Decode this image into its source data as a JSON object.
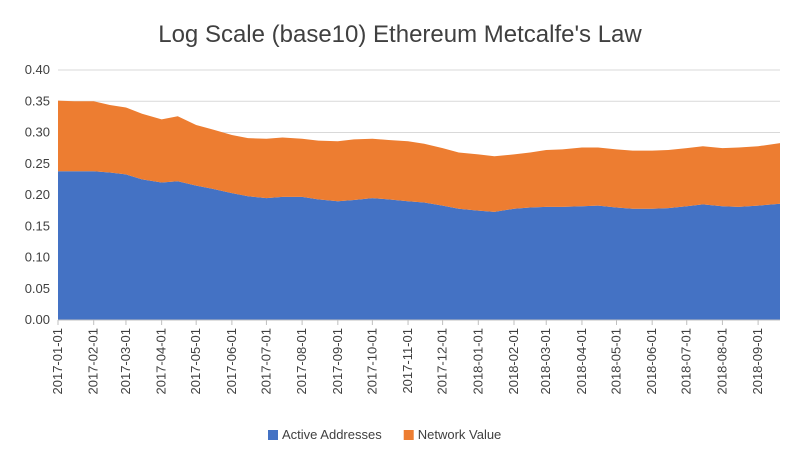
{
  "chart_data": {
    "type": "area",
    "stacked": true,
    "title": "Log Scale (base10) Ethereum Metcalfe's Law",
    "xlabel": "",
    "ylabel": "",
    "ylim": [
      0,
      0.4
    ],
    "yticks": [
      "0.00",
      "0.05",
      "0.10",
      "0.15",
      "0.20",
      "0.25",
      "0.30",
      "0.35",
      "0.40"
    ],
    "xticks": [
      "2017-01-01",
      "2017-02-01",
      "2017-03-01",
      "2017-04-01",
      "2017-05-01",
      "2017-06-01",
      "2017-07-01",
      "2017-08-01",
      "2017-09-01",
      "2017-10-01",
      "2017-11-01",
      "2017-12-01",
      "2018-01-01",
      "2018-02-01",
      "2018-03-01",
      "2018-04-01",
      "2018-05-01",
      "2018-06-01",
      "2018-07-01",
      "2018-08-01",
      "2018-09-01"
    ],
    "x": [
      "2017-01-01",
      "2017-01-15",
      "2017-02-01",
      "2017-02-15",
      "2017-03-01",
      "2017-03-15",
      "2017-04-01",
      "2017-04-15",
      "2017-05-01",
      "2017-05-15",
      "2017-06-01",
      "2017-06-15",
      "2017-07-01",
      "2017-07-15",
      "2017-08-01",
      "2017-08-15",
      "2017-09-01",
      "2017-09-15",
      "2017-10-01",
      "2017-10-15",
      "2017-11-01",
      "2017-11-15",
      "2017-12-01",
      "2017-12-15",
      "2018-01-01",
      "2018-01-15",
      "2018-02-01",
      "2018-02-15",
      "2018-03-01",
      "2018-03-15",
      "2018-04-01",
      "2018-04-15",
      "2018-05-01",
      "2018-05-15",
      "2018-06-01",
      "2018-06-15",
      "2018-07-01",
      "2018-07-15",
      "2018-08-01",
      "2018-08-15",
      "2018-09-01",
      "2018-09-20"
    ],
    "series": [
      {
        "name": "Active Addresses",
        "color": "#4472c4",
        "values": [
          0.238,
          0.238,
          0.238,
          0.236,
          0.233,
          0.225,
          0.22,
          0.222,
          0.215,
          0.21,
          0.203,
          0.198,
          0.195,
          0.197,
          0.197,
          0.193,
          0.19,
          0.192,
          0.195,
          0.193,
          0.19,
          0.188,
          0.183,
          0.178,
          0.175,
          0.173,
          0.178,
          0.18,
          0.181,
          0.181,
          0.182,
          0.183,
          0.18,
          0.178,
          0.178,
          0.179,
          0.182,
          0.185,
          0.182,
          0.181,
          0.183,
          0.186
        ]
      },
      {
        "name": "Network Value",
        "color": "#ed7d31",
        "values": [
          0.113,
          0.112,
          0.112,
          0.108,
          0.107,
          0.105,
          0.101,
          0.104,
          0.097,
          0.095,
          0.093,
          0.093,
          0.095,
          0.095,
          0.093,
          0.094,
          0.096,
          0.097,
          0.095,
          0.095,
          0.096,
          0.094,
          0.092,
          0.09,
          0.09,
          0.089,
          0.087,
          0.088,
          0.091,
          0.092,
          0.094,
          0.093,
          0.093,
          0.093,
          0.093,
          0.093,
          0.093,
          0.093,
          0.093,
          0.095,
          0.095,
          0.097
        ]
      }
    ],
    "legend_position": "bottom",
    "grid": true
  }
}
